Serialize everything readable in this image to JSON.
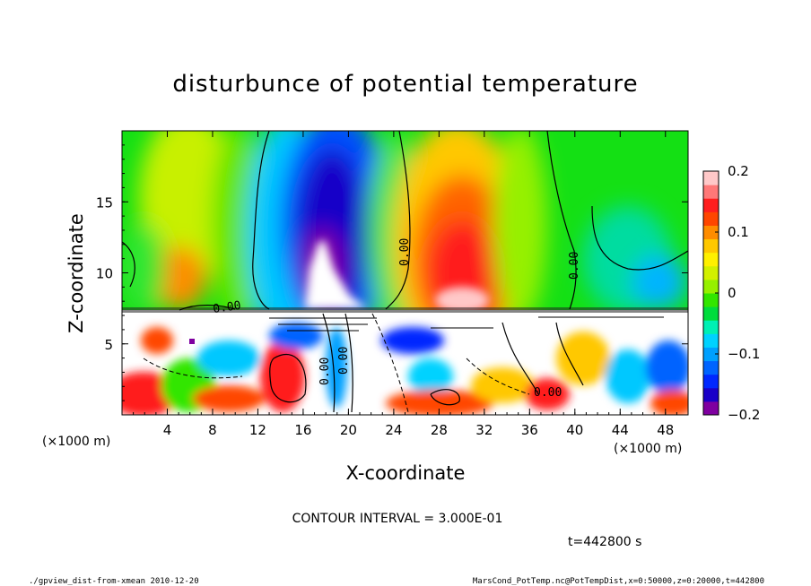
{
  "chart_data": {
    "type": "heatmap",
    "title": "disturbunce of potential temperature",
    "xlabel": "X-coordinate",
    "ylabel": "Z-coordinate",
    "x_unit": "(×1000 m)",
    "z_unit": "(×1000 m)",
    "xlim": [
      0,
      50
    ],
    "ylim": [
      0,
      20
    ],
    "x_ticks": [
      "4",
      "8",
      "12",
      "16",
      "20",
      "24",
      "28",
      "32",
      "36",
      "40",
      "44",
      "48"
    ],
    "y_ticks": [
      "5",
      "10",
      "15"
    ],
    "colorbar": {
      "range": [
        -0.2,
        0.2
      ],
      "tick_labels": [
        "0.2",
        "0.1",
        "0",
        "−0.1",
        "−0.2"
      ],
      "colors": [
        "#7f00a0",
        "#1a00c8",
        "#0028ff",
        "#0064ff",
        "#00a0ff",
        "#00d2ff",
        "#00f0b4",
        "#00dc3c",
        "#32e600",
        "#96f000",
        "#d2f000",
        "#fff000",
        "#ffc800",
        "#ff8c00",
        "#ff4600",
        "#ff1e1e",
        "#ff7878",
        "#ffc8c8"
      ]
    },
    "contour_labels": [
      "0.00",
      "0.00",
      "0.00",
      "0.00",
      "0.00",
      "0.00",
      "0.00"
    ],
    "features": [
      {
        "name": "cold anomaly",
        "x": 18.5,
        "z": 13,
        "value": -0.2
      },
      {
        "name": "warm anomaly",
        "x": 30,
        "z": 11,
        "value": 0.2
      },
      {
        "name": "cold anomaly",
        "x": 48,
        "z": 9,
        "value": -0.08
      }
    ],
    "contour_interval": "CONTOUR INTERVAL = 3.000E-01",
    "time_label": "t=442800 s"
  },
  "footer": {
    "left": "./gpview_dist-from-xmean  2010-12-20",
    "right": "MarsCond_PotTemp.nc@PotTempDist,x=0:50000,z=0:20000,t=442800"
  }
}
